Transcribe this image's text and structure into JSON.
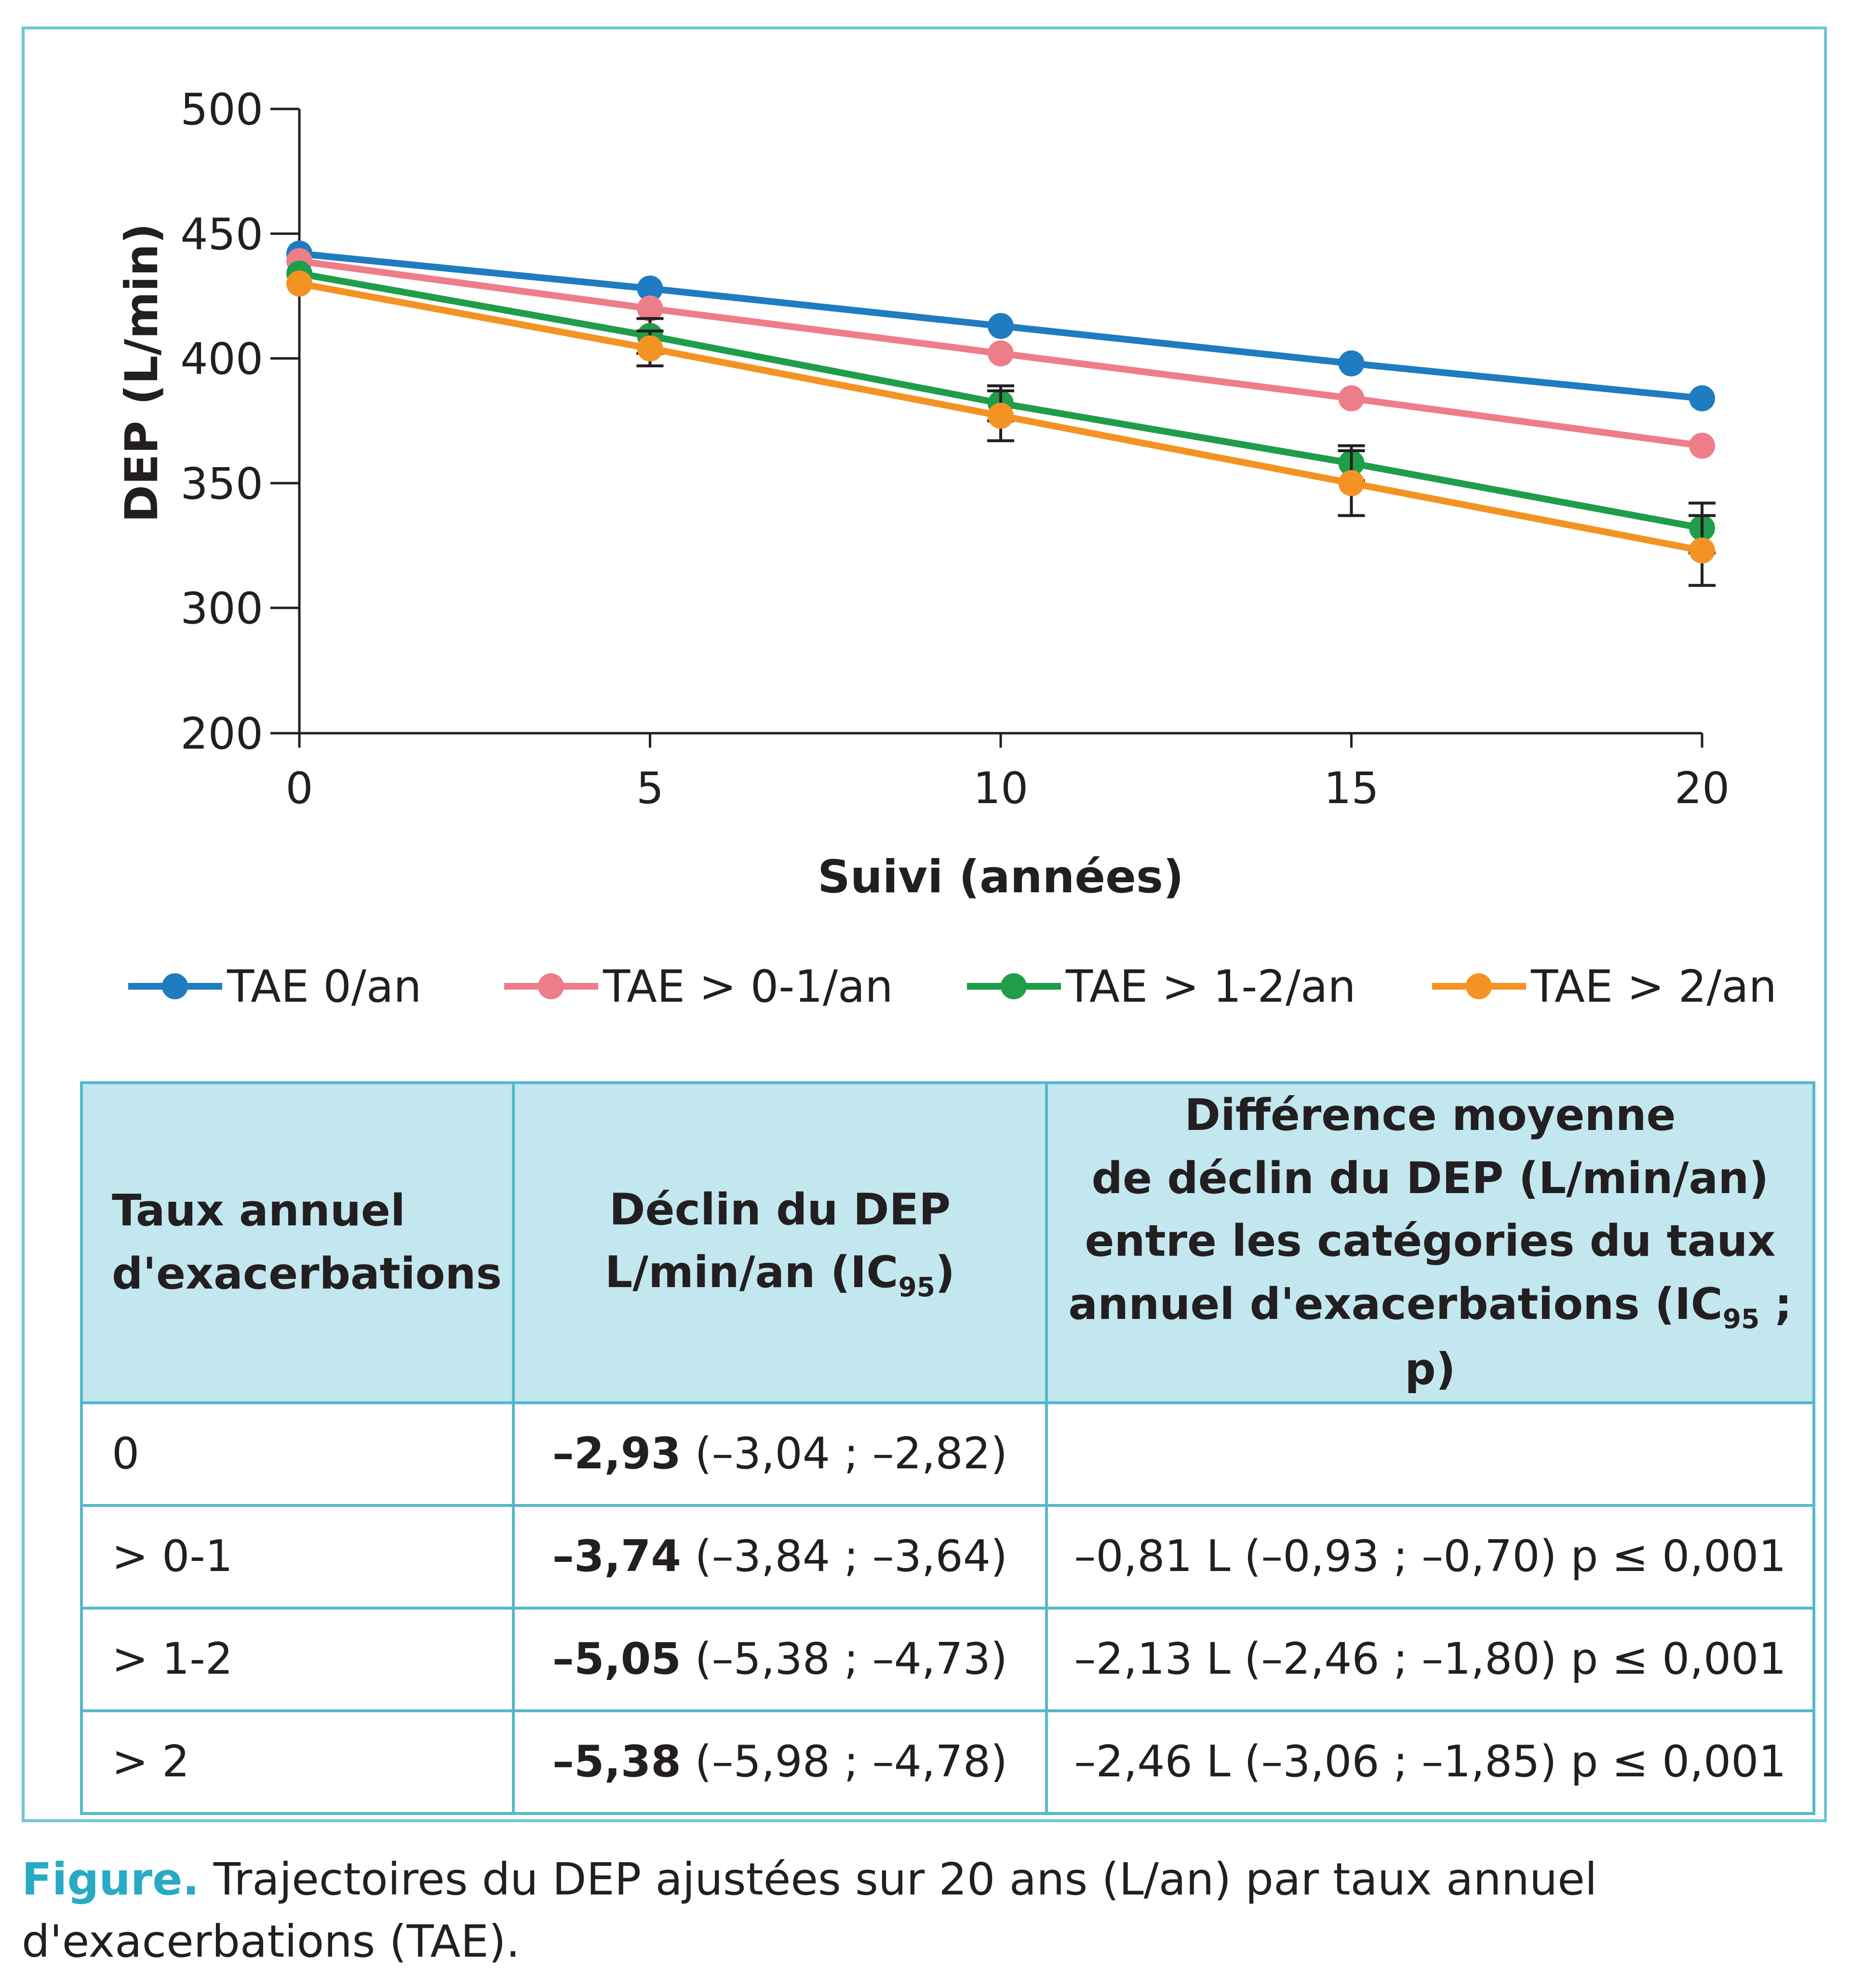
{
  "chart_data": {
    "type": "line",
    "title": "",
    "xlabel": "Suivi (années)",
    "ylabel": "DEP (L/min)",
    "x": [
      0,
      5,
      10,
      15,
      20
    ],
    "xticks": [
      "0",
      "5",
      "10",
      "15",
      "20"
    ],
    "yticks": [
      "200",
      "300",
      "350",
      "400",
      "450",
      "500"
    ],
    "ylim": [
      200,
      500
    ],
    "axis_break": "y axis broken between 200 and 300",
    "grid": false,
    "legend_position": "bottom",
    "series": [
      {
        "name": "TAE 0/an",
        "color": "#1f7cc0",
        "values": [
          442,
          428,
          413,
          398,
          384
        ]
      },
      {
        "name": "TAE > 0-1/an",
        "color": "#ee7d8a",
        "values": [
          439,
          420,
          402,
          384,
          365
        ]
      },
      {
        "name": "TAE > 1-2/an",
        "color": "#1f9d4a",
        "values": [
          434,
          409,
          382,
          358,
          332
        ],
        "error": [
          0,
          7,
          7,
          7,
          10
        ]
      },
      {
        "name": "TAE > 2/an",
        "color": "#f39323",
        "values": [
          430,
          404,
          377,
          350,
          323
        ],
        "error": [
          0,
          7,
          10,
          13,
          14
        ]
      }
    ]
  },
  "table": {
    "headers": [
      [
        "Taux annuel",
        "d'exacerbations"
      ],
      [
        "Déclin du DEP",
        "L/min/an (IC",
        "95",
        ")"
      ],
      [
        "Différence moyenne",
        "de déclin du DEP (L/min/an)",
        "entre les catégories du taux",
        "annuel d'exacerbations (IC",
        "95",
        " ; p)"
      ]
    ],
    "rows": [
      {
        "rate": "0",
        "decline": "–2,93",
        "ci": " (–3,04 ; –2,82)",
        "diff": ""
      },
      {
        "rate": "> 0-1",
        "decline": "–3,74",
        "ci": " (–3,84 ; –3,64)",
        "diff": "–0,81 L (–0,93 ; –0,70) p ≤ 0,001"
      },
      {
        "rate": "> 1-2",
        "decline": "–5,05",
        "ci": " (–5,38 ; –4,73)",
        "diff": "–2,13 L (–2,46 ; –1,80) p ≤ 0,001"
      },
      {
        "rate": "> 2",
        "decline": "–5,38",
        "ci": " (–5,98 ; –4,78)",
        "diff": "–2,46 L (–3,06 ; –1,85) p ≤ 0,001"
      }
    ]
  },
  "caption": {
    "label": "Figure.",
    "text": " Trajectoires du DEP ajustées sur 20 ans (L/an) par taux annuel d'exacerbations (TAE)."
  }
}
